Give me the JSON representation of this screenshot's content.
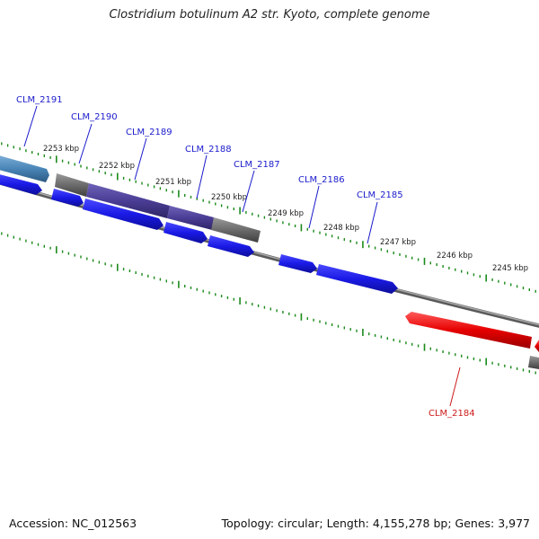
{
  "title": "Clostridium botulinum A2 str. Kyoto, complete genome",
  "footer": {
    "accession": "Accession: NC_012563",
    "summary": "Topology: circular; Length: 4,155,278 bp; Genes: 3,977"
  },
  "colors": {
    "backbone": "#808080",
    "forward_gene": "#1a1ae6",
    "hypothetical_gene": "#6b6b6b",
    "highlight_gene": "#4a3d95",
    "reverse_gene": "#e60000",
    "tick": "#1a8a1a",
    "label_blue": "#1a1acc",
    "label_red": "#cc1a1a"
  },
  "scale_labels": [
    "2253 kbp",
    "2252 kbp",
    "2251 kbp",
    "2250 kbp",
    "2249 kbp",
    "2248 kbp",
    "2247 kbp",
    "2246 kbp",
    "2245 kbp"
  ],
  "gene_labels": [
    "CLM_2191",
    "CLM_2190",
    "CLM_2189",
    "CLM_2188",
    "CLM_2187",
    "CLM_2186",
    "CLM_2185",
    "CLM_2184"
  ]
}
